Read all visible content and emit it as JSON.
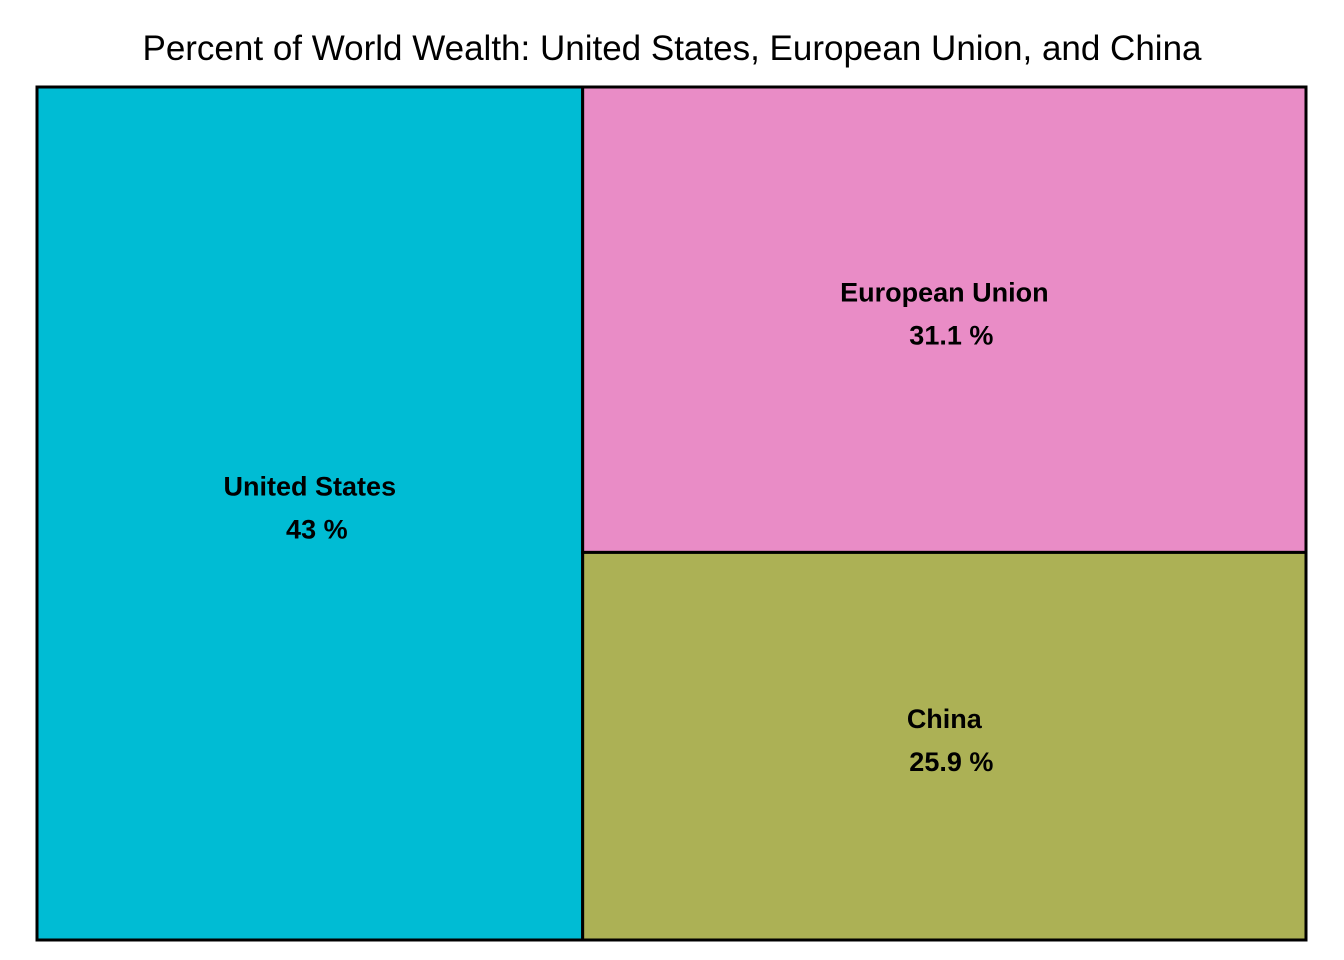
{
  "chart_data": {
    "type": "treemap",
    "title": "Percent of World Wealth: United States, European Union, and China",
    "items": [
      {
        "name": "United States",
        "value": 43,
        "value_label": "43 %",
        "color": "#00BCD4"
      },
      {
        "name": "European Union",
        "value": 31.1,
        "value_label": "31.1 %",
        "color": "#E98CC6"
      },
      {
        "name": "China",
        "value": 25.9,
        "value_label": "25.9 %",
        "color": "#ACB155"
      }
    ],
    "border_color": "#000000"
  }
}
